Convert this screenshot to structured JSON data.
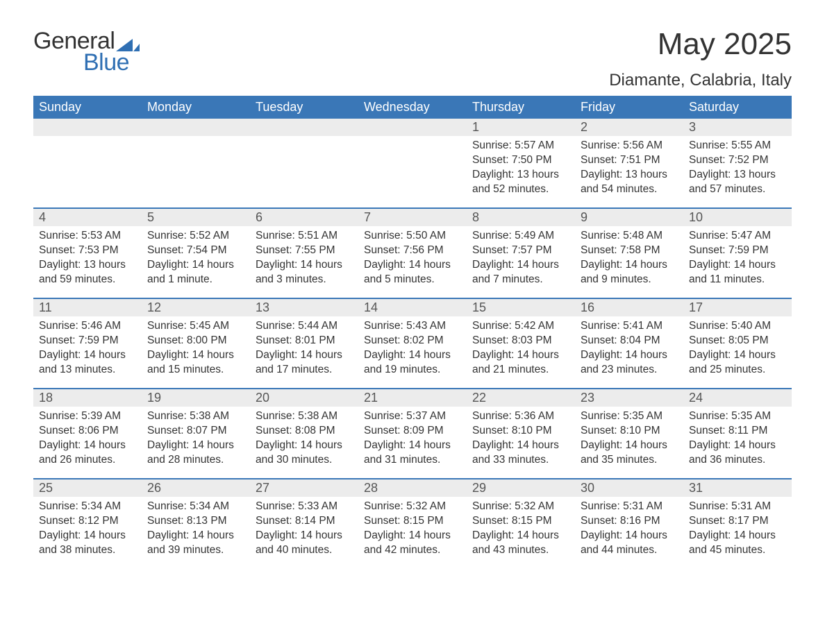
{
  "brand": {
    "word1": "General",
    "word2": "Blue",
    "accent_color": "#2f6fb3"
  },
  "title": "May 2025",
  "location": "Diamante, Calabria, Italy",
  "colors": {
    "header_bg": "#3a77b7",
    "header_text": "#ffffff",
    "daynum_bg": "#ececec",
    "daynum_text": "#555555",
    "body_text": "#333333",
    "rule": "#3a77b7",
    "page_bg": "#ffffff"
  },
  "fonts": {
    "title_size_pt": 33,
    "location_size_pt": 18,
    "weekday_size_pt": 14,
    "daynum_size_pt": 14,
    "body_size_pt": 12
  },
  "weekdays": [
    "Sunday",
    "Monday",
    "Tuesday",
    "Wednesday",
    "Thursday",
    "Friday",
    "Saturday"
  ],
  "layout": {
    "columns": 7,
    "rows": 5,
    "first_day_column": 4
  },
  "weeks": [
    [
      null,
      null,
      null,
      null,
      {
        "n": "1",
        "sunrise": "Sunrise: 5:57 AM",
        "sunset": "Sunset: 7:50 PM",
        "daylight": "Daylight: 13 hours and 52 minutes."
      },
      {
        "n": "2",
        "sunrise": "Sunrise: 5:56 AM",
        "sunset": "Sunset: 7:51 PM",
        "daylight": "Daylight: 13 hours and 54 minutes."
      },
      {
        "n": "3",
        "sunrise": "Sunrise: 5:55 AM",
        "sunset": "Sunset: 7:52 PM",
        "daylight": "Daylight: 13 hours and 57 minutes."
      }
    ],
    [
      {
        "n": "4",
        "sunrise": "Sunrise: 5:53 AM",
        "sunset": "Sunset: 7:53 PM",
        "daylight": "Daylight: 13 hours and 59 minutes."
      },
      {
        "n": "5",
        "sunrise": "Sunrise: 5:52 AM",
        "sunset": "Sunset: 7:54 PM",
        "daylight": "Daylight: 14 hours and 1 minute."
      },
      {
        "n": "6",
        "sunrise": "Sunrise: 5:51 AM",
        "sunset": "Sunset: 7:55 PM",
        "daylight": "Daylight: 14 hours and 3 minutes."
      },
      {
        "n": "7",
        "sunrise": "Sunrise: 5:50 AM",
        "sunset": "Sunset: 7:56 PM",
        "daylight": "Daylight: 14 hours and 5 minutes."
      },
      {
        "n": "8",
        "sunrise": "Sunrise: 5:49 AM",
        "sunset": "Sunset: 7:57 PM",
        "daylight": "Daylight: 14 hours and 7 minutes."
      },
      {
        "n": "9",
        "sunrise": "Sunrise: 5:48 AM",
        "sunset": "Sunset: 7:58 PM",
        "daylight": "Daylight: 14 hours and 9 minutes."
      },
      {
        "n": "10",
        "sunrise": "Sunrise: 5:47 AM",
        "sunset": "Sunset: 7:59 PM",
        "daylight": "Daylight: 14 hours and 11 minutes."
      }
    ],
    [
      {
        "n": "11",
        "sunrise": "Sunrise: 5:46 AM",
        "sunset": "Sunset: 7:59 PM",
        "daylight": "Daylight: 14 hours and 13 minutes."
      },
      {
        "n": "12",
        "sunrise": "Sunrise: 5:45 AM",
        "sunset": "Sunset: 8:00 PM",
        "daylight": "Daylight: 14 hours and 15 minutes."
      },
      {
        "n": "13",
        "sunrise": "Sunrise: 5:44 AM",
        "sunset": "Sunset: 8:01 PM",
        "daylight": "Daylight: 14 hours and 17 minutes."
      },
      {
        "n": "14",
        "sunrise": "Sunrise: 5:43 AM",
        "sunset": "Sunset: 8:02 PM",
        "daylight": "Daylight: 14 hours and 19 minutes."
      },
      {
        "n": "15",
        "sunrise": "Sunrise: 5:42 AM",
        "sunset": "Sunset: 8:03 PM",
        "daylight": "Daylight: 14 hours and 21 minutes."
      },
      {
        "n": "16",
        "sunrise": "Sunrise: 5:41 AM",
        "sunset": "Sunset: 8:04 PM",
        "daylight": "Daylight: 14 hours and 23 minutes."
      },
      {
        "n": "17",
        "sunrise": "Sunrise: 5:40 AM",
        "sunset": "Sunset: 8:05 PM",
        "daylight": "Daylight: 14 hours and 25 minutes."
      }
    ],
    [
      {
        "n": "18",
        "sunrise": "Sunrise: 5:39 AM",
        "sunset": "Sunset: 8:06 PM",
        "daylight": "Daylight: 14 hours and 26 minutes."
      },
      {
        "n": "19",
        "sunrise": "Sunrise: 5:38 AM",
        "sunset": "Sunset: 8:07 PM",
        "daylight": "Daylight: 14 hours and 28 minutes."
      },
      {
        "n": "20",
        "sunrise": "Sunrise: 5:38 AM",
        "sunset": "Sunset: 8:08 PM",
        "daylight": "Daylight: 14 hours and 30 minutes."
      },
      {
        "n": "21",
        "sunrise": "Sunrise: 5:37 AM",
        "sunset": "Sunset: 8:09 PM",
        "daylight": "Daylight: 14 hours and 31 minutes."
      },
      {
        "n": "22",
        "sunrise": "Sunrise: 5:36 AM",
        "sunset": "Sunset: 8:10 PM",
        "daylight": "Daylight: 14 hours and 33 minutes."
      },
      {
        "n": "23",
        "sunrise": "Sunrise: 5:35 AM",
        "sunset": "Sunset: 8:10 PM",
        "daylight": "Daylight: 14 hours and 35 minutes."
      },
      {
        "n": "24",
        "sunrise": "Sunrise: 5:35 AM",
        "sunset": "Sunset: 8:11 PM",
        "daylight": "Daylight: 14 hours and 36 minutes."
      }
    ],
    [
      {
        "n": "25",
        "sunrise": "Sunrise: 5:34 AM",
        "sunset": "Sunset: 8:12 PM",
        "daylight": "Daylight: 14 hours and 38 minutes."
      },
      {
        "n": "26",
        "sunrise": "Sunrise: 5:34 AM",
        "sunset": "Sunset: 8:13 PM",
        "daylight": "Daylight: 14 hours and 39 minutes."
      },
      {
        "n": "27",
        "sunrise": "Sunrise: 5:33 AM",
        "sunset": "Sunset: 8:14 PM",
        "daylight": "Daylight: 14 hours and 40 minutes."
      },
      {
        "n": "28",
        "sunrise": "Sunrise: 5:32 AM",
        "sunset": "Sunset: 8:15 PM",
        "daylight": "Daylight: 14 hours and 42 minutes."
      },
      {
        "n": "29",
        "sunrise": "Sunrise: 5:32 AM",
        "sunset": "Sunset: 8:15 PM",
        "daylight": "Daylight: 14 hours and 43 minutes."
      },
      {
        "n": "30",
        "sunrise": "Sunrise: 5:31 AM",
        "sunset": "Sunset: 8:16 PM",
        "daylight": "Daylight: 14 hours and 44 minutes."
      },
      {
        "n": "31",
        "sunrise": "Sunrise: 5:31 AM",
        "sunset": "Sunset: 8:17 PM",
        "daylight": "Daylight: 14 hours and 45 minutes."
      }
    ]
  ]
}
